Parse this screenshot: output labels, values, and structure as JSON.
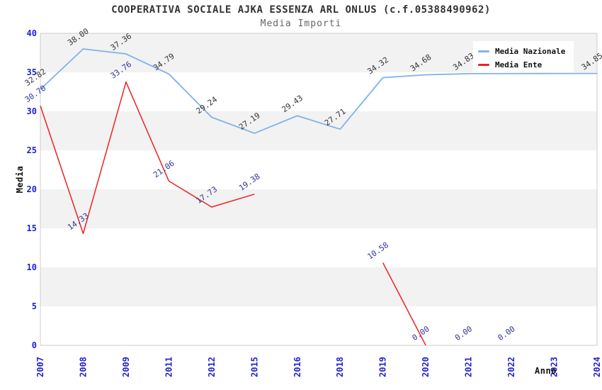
{
  "chart_data": {
    "type": "line",
    "title": "COOPERATIVA SOCIALE AJKA ESSENZA ARL ONLUS (c.f.05388490962)",
    "subtitle": "Media Importi",
    "xlabel": "Anno",
    "ylabel": "Media",
    "ylim": [
      0,
      40
    ],
    "ytick_step": 5,
    "grid": "horizontal-alternating-bands",
    "legend_position": "top-right",
    "tick_label_color": "#2222cc",
    "categories": [
      "2007",
      "2008",
      "2009",
      "2011",
      "2012",
      "2015",
      "2016",
      "2018",
      "2019",
      "2020",
      "2021",
      "2022",
      "2023",
      "2024"
    ],
    "series": [
      {
        "name": "Media Nazionale",
        "color": "#7fb2e8",
        "label_color": "#333333",
        "values": [
          32.82,
          38.0,
          37.36,
          34.79,
          29.24,
          27.19,
          29.43,
          27.71,
          34.32,
          34.68,
          34.83,
          34.84,
          34.85,
          34.85
        ],
        "segments": [
          [
            0,
            13
          ]
        ]
      },
      {
        "name": "Media Ente",
        "color": "#ee2222",
        "label_color": "#333399",
        "values": [
          30.7,
          14.33,
          33.76,
          21.06,
          17.73,
          19.38,
          null,
          null,
          10.58,
          0.0,
          0.0,
          0.0,
          null,
          null
        ],
        "segments": [
          [
            0,
            5
          ],
          [
            8,
            9
          ]
        ]
      }
    ]
  }
}
